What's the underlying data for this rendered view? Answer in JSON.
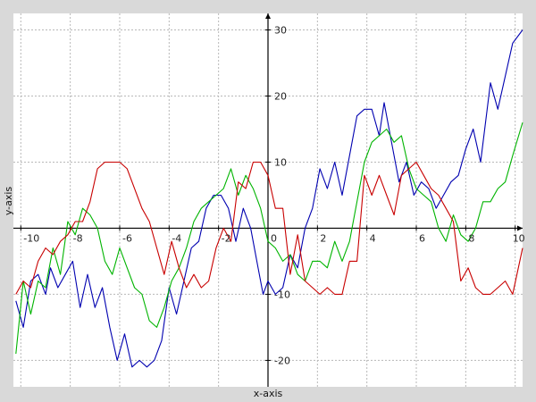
{
  "chart_data": {
    "type": "line",
    "xlabel": "x-axis",
    "ylabel": "y-axis",
    "xlim": [
      -10.3,
      10.3
    ],
    "ylim": [
      -24,
      32.5
    ],
    "grid": true,
    "x_ticks": [
      -10,
      -8,
      -6,
      -4,
      -2,
      0,
      2,
      4,
      6,
      8,
      10
    ],
    "x_tick_labels": [
      "-10",
      "-8",
      "-6",
      "-4",
      "-2",
      "0",
      "2",
      "4",
      "6",
      "8",
      "10"
    ],
    "y_ticks": [
      -20,
      -10,
      10,
      20,
      30
    ],
    "y_tick_labels": [
      "-20",
      "-10",
      "10",
      "20",
      "30"
    ],
    "series": [
      {
        "color": "#0000b0",
        "points": [
          [
            -10.2,
            -11
          ],
          [
            -9.9,
            -15
          ],
          [
            -9.6,
            -8
          ],
          [
            -9.3,
            -7
          ],
          [
            -9.0,
            -10
          ],
          [
            -8.8,
            -6
          ],
          [
            -8.5,
            -9
          ],
          [
            -8.2,
            -7
          ],
          [
            -7.9,
            -5
          ],
          [
            -7.6,
            -12
          ],
          [
            -7.3,
            -7
          ],
          [
            -7.0,
            -12
          ],
          [
            -6.7,
            -9
          ],
          [
            -6.4,
            -15
          ],
          [
            -6.1,
            -20
          ],
          [
            -5.8,
            -16
          ],
          [
            -5.5,
            -21
          ],
          [
            -5.2,
            -20
          ],
          [
            -4.9,
            -21
          ],
          [
            -4.6,
            -20
          ],
          [
            -4.3,
            -17
          ],
          [
            -4.0,
            -9
          ],
          [
            -3.7,
            -13
          ],
          [
            -3.4,
            -8
          ],
          [
            -3.1,
            -3
          ],
          [
            -2.8,
            -2
          ],
          [
            -2.5,
            3
          ],
          [
            -2.2,
            5
          ],
          [
            -1.9,
            5
          ],
          [
            -1.6,
            3
          ],
          [
            -1.3,
            -2
          ],
          [
            -1.0,
            3
          ],
          [
            -0.7,
            0
          ],
          [
            -0.4,
            -6
          ],
          [
            -0.2,
            -10
          ],
          [
            0,
            -8
          ],
          [
            0.3,
            -10
          ],
          [
            0.6,
            -9
          ],
          [
            0.9,
            -4
          ],
          [
            1.2,
            -6
          ],
          [
            1.5,
            0
          ],
          [
            1.8,
            3
          ],
          [
            2.1,
            9
          ],
          [
            2.4,
            6
          ],
          [
            2.7,
            10
          ],
          [
            3.0,
            5
          ],
          [
            3.3,
            11
          ],
          [
            3.6,
            17
          ],
          [
            3.9,
            18
          ],
          [
            4.2,
            18
          ],
          [
            4.5,
            14
          ],
          [
            4.7,
            19
          ],
          [
            5.0,
            13
          ],
          [
            5.3,
            7
          ],
          [
            5.6,
            10
          ],
          [
            5.9,
            5
          ],
          [
            6.2,
            7
          ],
          [
            6.5,
            6
          ],
          [
            6.8,
            3
          ],
          [
            7.1,
            5
          ],
          [
            7.4,
            7
          ],
          [
            7.7,
            8
          ],
          [
            8.0,
            12
          ],
          [
            8.3,
            15
          ],
          [
            8.6,
            10
          ],
          [
            9.0,
            22
          ],
          [
            9.3,
            18
          ],
          [
            9.6,
            23
          ],
          [
            9.9,
            28
          ],
          [
            10.3,
            30
          ]
        ]
      },
      {
        "color": "#00b400",
        "points": [
          [
            -10.2,
            -19
          ],
          [
            -9.9,
            -8
          ],
          [
            -9.6,
            -13
          ],
          [
            -9.3,
            -8
          ],
          [
            -9.0,
            -9
          ],
          [
            -8.7,
            -3
          ],
          [
            -8.4,
            -7
          ],
          [
            -8.1,
            1
          ],
          [
            -7.8,
            -1
          ],
          [
            -7.5,
            3
          ],
          [
            -7.2,
            2
          ],
          [
            -6.9,
            0
          ],
          [
            -6.6,
            -5
          ],
          [
            -6.3,
            -7
          ],
          [
            -6.0,
            -3
          ],
          [
            -5.7,
            -6
          ],
          [
            -5.4,
            -9
          ],
          [
            -5.1,
            -10
          ],
          [
            -4.8,
            -14
          ],
          [
            -4.5,
            -15
          ],
          [
            -4.2,
            -12
          ],
          [
            -3.9,
            -8
          ],
          [
            -3.6,
            -6
          ],
          [
            -3.3,
            -3
          ],
          [
            -3.0,
            1
          ],
          [
            -2.7,
            3
          ],
          [
            -2.4,
            4
          ],
          [
            -2.1,
            5
          ],
          [
            -1.8,
            6
          ],
          [
            -1.5,
            9
          ],
          [
            -1.2,
            5
          ],
          [
            -0.9,
            8
          ],
          [
            -0.6,
            6
          ],
          [
            -0.3,
            3
          ],
          [
            0,
            -2
          ],
          [
            0.3,
            -3
          ],
          [
            0.6,
            -5
          ],
          [
            0.9,
            -4
          ],
          [
            1.2,
            -7
          ],
          [
            1.5,
            -8
          ],
          [
            1.8,
            -5
          ],
          [
            2.1,
            -5
          ],
          [
            2.4,
            -6
          ],
          [
            2.7,
            -2
          ],
          [
            3.0,
            -5
          ],
          [
            3.3,
            -2
          ],
          [
            3.6,
            4
          ],
          [
            3.9,
            10
          ],
          [
            4.2,
            13
          ],
          [
            4.5,
            14
          ],
          [
            4.8,
            15
          ],
          [
            5.1,
            13
          ],
          [
            5.4,
            14
          ],
          [
            5.7,
            9
          ],
          [
            6.0,
            6
          ],
          [
            6.3,
            5
          ],
          [
            6.6,
            4
          ],
          [
            6.9,
            0
          ],
          [
            7.2,
            -2
          ],
          [
            7.5,
            2
          ],
          [
            7.8,
            -1
          ],
          [
            8.1,
            -2
          ],
          [
            8.4,
            0
          ],
          [
            8.7,
            4
          ],
          [
            9.0,
            4
          ],
          [
            9.3,
            6
          ],
          [
            9.6,
            7
          ],
          [
            9.9,
            11
          ],
          [
            10.3,
            16
          ]
        ]
      },
      {
        "color": "#c80000",
        "points": [
          [
            -10.2,
            -10
          ],
          [
            -9.9,
            -8
          ],
          [
            -9.6,
            -9
          ],
          [
            -9.3,
            -5
          ],
          [
            -9.0,
            -3
          ],
          [
            -8.7,
            -4
          ],
          [
            -8.4,
            -2
          ],
          [
            -8.1,
            -1
          ],
          [
            -7.8,
            1
          ],
          [
            -7.5,
            1
          ],
          [
            -7.2,
            4
          ],
          [
            -6.9,
            9
          ],
          [
            -6.6,
            10
          ],
          [
            -6.3,
            10
          ],
          [
            -6.0,
            10
          ],
          [
            -5.7,
            9
          ],
          [
            -5.4,
            6
          ],
          [
            -5.1,
            3
          ],
          [
            -4.8,
            1
          ],
          [
            -4.5,
            -3
          ],
          [
            -4.2,
            -7
          ],
          [
            -3.9,
            -2
          ],
          [
            -3.6,
            -6
          ],
          [
            -3.3,
            -9
          ],
          [
            -3.0,
            -7
          ],
          [
            -2.7,
            -9
          ],
          [
            -2.4,
            -8
          ],
          [
            -2.1,
            -3
          ],
          [
            -1.8,
            0
          ],
          [
            -1.5,
            -2
          ],
          [
            -1.2,
            7
          ],
          [
            -0.9,
            6
          ],
          [
            -0.6,
            10
          ],
          [
            -0.3,
            10
          ],
          [
            0,
            8
          ],
          [
            0.3,
            3
          ],
          [
            0.6,
            3
          ],
          [
            0.9,
            -7
          ],
          [
            1.2,
            -1
          ],
          [
            1.5,
            -8
          ],
          [
            1.8,
            -9
          ],
          [
            2.1,
            -10
          ],
          [
            2.4,
            -9
          ],
          [
            2.7,
            -10
          ],
          [
            3.0,
            -10
          ],
          [
            3.3,
            -5
          ],
          [
            3.6,
            -5
          ],
          [
            3.9,
            8
          ],
          [
            4.2,
            5
          ],
          [
            4.5,
            8
          ],
          [
            4.8,
            5
          ],
          [
            5.1,
            2
          ],
          [
            5.4,
            8
          ],
          [
            5.7,
            9
          ],
          [
            6.0,
            10
          ],
          [
            6.3,
            8
          ],
          [
            6.6,
            6
          ],
          [
            6.9,
            5
          ],
          [
            7.2,
            3
          ],
          [
            7.5,
            1
          ],
          [
            7.8,
            -8
          ],
          [
            8.1,
            -6
          ],
          [
            8.4,
            -9
          ],
          [
            8.7,
            -10
          ],
          [
            9.0,
            -10
          ],
          [
            9.3,
            -9
          ],
          [
            9.6,
            -8
          ],
          [
            9.9,
            -10
          ],
          [
            10.3,
            -3
          ]
        ]
      }
    ]
  }
}
